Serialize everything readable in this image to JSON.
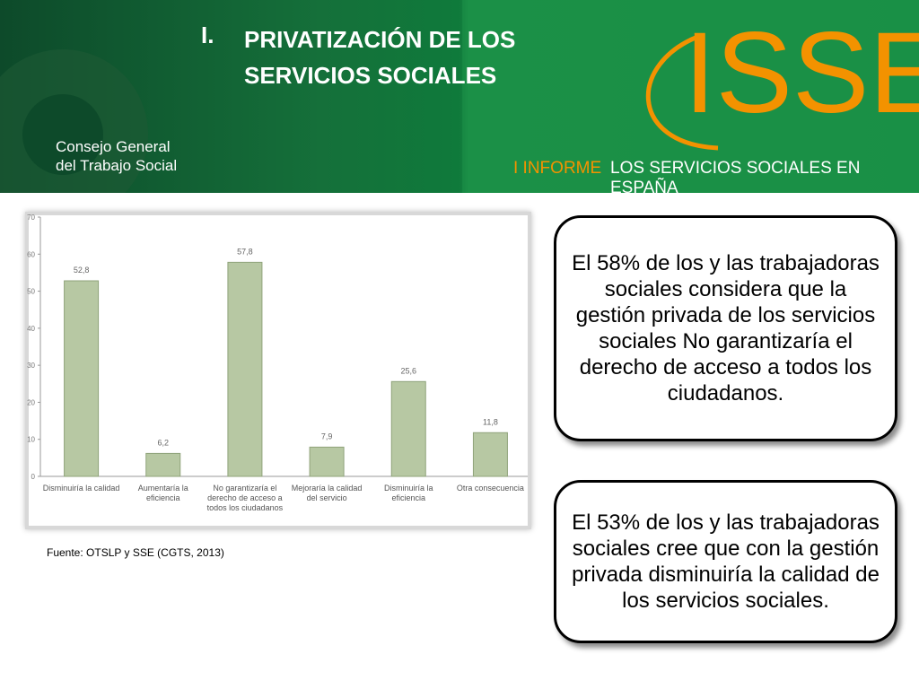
{
  "header": {
    "number": "I.",
    "title": "PRIVATIZACIÓN DE LOS SERVICIOS SOCIALES",
    "org_line1": "Consejo General",
    "org_line2": "del Trabajo Social",
    "logo": "ISSE",
    "report_label": "I INFORME",
    "report_title": "LOS SERVICIOS SOCIALES EN ESPAÑA"
  },
  "chart_data": {
    "type": "bar",
    "categories": [
      "Disminuiría la calidad",
      "Aumentaría la eficiencia",
      "No garantizaría el derecho de acceso a todos los ciudadanos",
      "Mejoraría la calidad del servicio",
      "Disminuiría la eficiencia",
      "Otra consecuencia"
    ],
    "values": [
      52.8,
      6.2,
      57.8,
      7.9,
      25.6,
      11.8
    ],
    "value_labels": [
      "52,8",
      "6,2",
      "57,8",
      "7,9",
      "25,6",
      "11,8"
    ],
    "color": "#b7c8a3",
    "ylim": [
      0,
      70
    ],
    "yticks": [
      0,
      10,
      20,
      30,
      40,
      50,
      60,
      70
    ],
    "grid": false
  },
  "source": "Fuente: OTSLP y SSE (CGTS, 2013)",
  "callouts": [
    "El 58% de los y las trabajadoras sociales considera que la gestión privada de los servicios sociales No garantizaría el derecho de acceso a todos los ciudadanos.",
    "El 53% de los y las trabajadoras sociales cree que con la gestión privada disminuiría la calidad de los servicios sociales."
  ]
}
